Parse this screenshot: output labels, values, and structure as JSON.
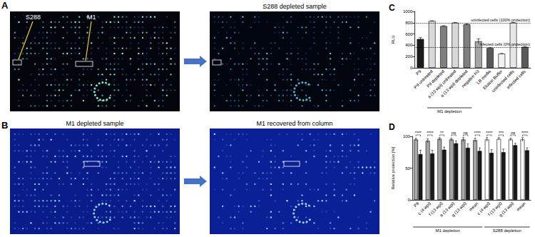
{
  "panels": {
    "A": {
      "letter": "A",
      "spot_labels": [
        "S288",
        "M1"
      ],
      "title": "S288 depleted sample"
    },
    "B": {
      "letter": "B",
      "titles": [
        "M1 depleted sample",
        "M1 recovered from column"
      ]
    }
  },
  "chart_data": [
    {
      "type": "bar",
      "title": "C",
      "categories": [
        "P9",
        "P9 untreated",
        "P9 depleted",
        "a (13 wpi) untreated",
        "a (13 wpi) depleted",
        "negative H3",
        "LB media",
        "Elution Buffer",
        "uninfected cells",
        "infected cells"
      ],
      "values": [
        510,
        830,
        740,
        800,
        770,
        470,
        350,
        250,
        800,
        370
      ],
      "errors": [
        25,
        5,
        8,
        5,
        10,
        45,
        10,
        5,
        5,
        5
      ],
      "colors": [
        "#1a1a1a",
        "#d9d9d9",
        "#7f7f7f",
        "#d9d9d9",
        "#7f7f7f",
        "#a6a6a6",
        "#595959",
        "#f2f2f2",
        "#e6e6e6",
        "#595959"
      ],
      "ylabel": "RLU",
      "ylim": [
        0,
        1000
      ],
      "yticks": [
        0,
        200,
        400,
        600,
        800,
        1000
      ],
      "grid": false,
      "reference_lines": [
        {
          "value": 800,
          "label": "uninfected cells (100% protection)"
        },
        {
          "value": 370,
          "label": "infected cells (0% protection)"
        }
      ],
      "groups": [
        {
          "label": "M1 depletion",
          "from": 1,
          "to": 4
        }
      ]
    },
    {
      "type": "bar",
      "title": "D",
      "categories": [
        "P9",
        "c (4 wpi)",
        "f (13 wpi)",
        "a (13 wpi)",
        "g (13 wpi)",
        "mean",
        "c (4 wpi)",
        "f (13 wpi)",
        "g (13 wpi)",
        "mean"
      ],
      "series": [
        {
          "values": [
            95,
            93,
            96,
            95,
            95,
            94,
            95,
            96,
            95,
            95
          ],
          "errors": [
            2,
            3,
            2,
            2,
            3,
            3,
            3,
            2,
            2,
            3
          ],
          "colors": [
            "#a6a6a6",
            "#a6a6a6",
            "#a6a6a6",
            "#a6a6a6",
            "#a6a6a6",
            "#a6a6a6",
            "#ffffff",
            "#ffffff",
            "#ffffff",
            "#ffffff"
          ]
        },
        {
          "values": [
            72,
            73,
            79,
            89,
            82,
            77,
            74,
            75,
            86,
            78
          ],
          "errors": [
            6,
            5,
            4,
            4,
            6,
            5,
            5,
            5,
            3,
            4
          ],
          "colors": [
            "#1a1a1a",
            "#1a1a1a",
            "#1a1a1a",
            "#1a1a1a",
            "#1a1a1a",
            "#1a1a1a",
            "#1a1a1a",
            "#1a1a1a",
            "#1a1a1a",
            "#1a1a1a"
          ]
        }
      ],
      "ylabel": "Relative protection [%]",
      "ylim": [
        0,
        100
      ],
      "yticks": [
        0,
        50,
        100
      ],
      "grid": false,
      "annotations": [
        "****",
        "****",
        "**",
        "ns",
        "ns",
        "****",
        "****",
        "***",
        "ns",
        "****"
      ],
      "groups": [
        {
          "label": "M1 depletion",
          "from": 0,
          "to": 5
        },
        {
          "label": "S288 depletion",
          "from": 6,
          "to": 9
        }
      ]
    }
  ]
}
